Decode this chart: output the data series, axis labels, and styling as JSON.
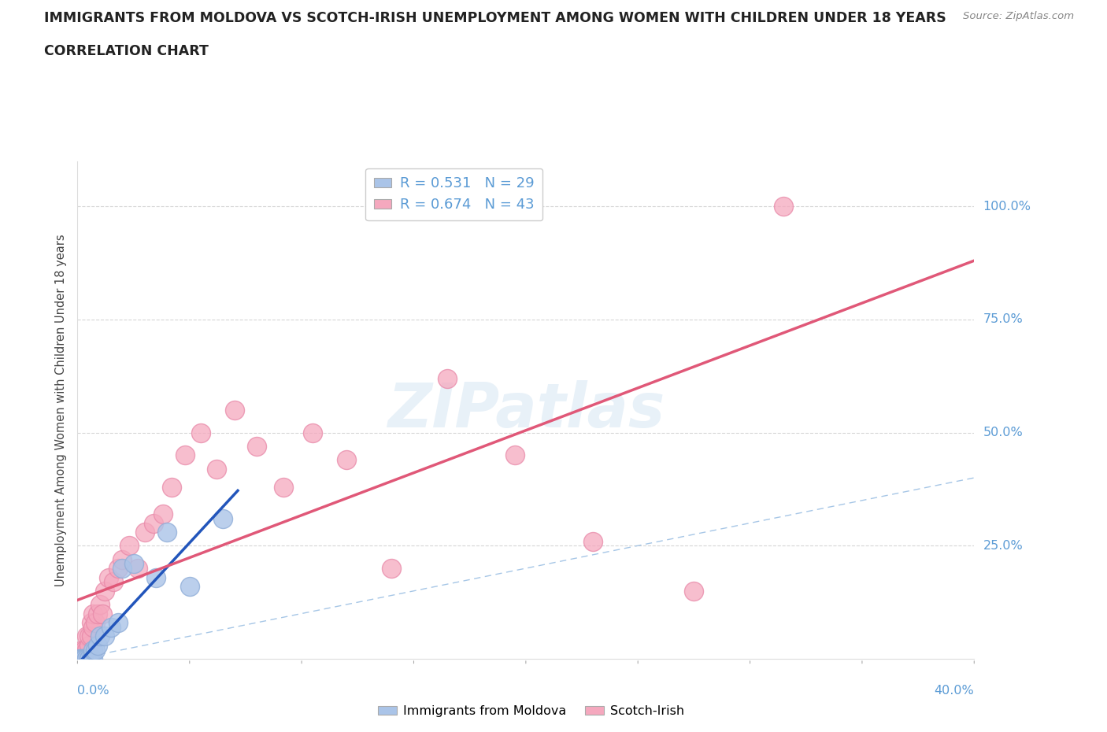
{
  "title": "IMMIGRANTS FROM MOLDOVA VS SCOTCH-IRISH UNEMPLOYMENT AMONG WOMEN WITH CHILDREN UNDER 18 YEARS",
  "subtitle": "CORRELATION CHART",
  "source": "Source: ZipAtlas.com",
  "ylabel": "Unemployment Among Women with Children Under 18 years",
  "xlim": [
    0,
    0.4
  ],
  "ylim": [
    0,
    1.1
  ],
  "yticks": [
    0.0,
    0.25,
    0.5,
    0.75,
    1.0
  ],
  "ytick_labels": [
    "0.0%",
    "25.0%",
    "50.0%",
    "75.0%",
    "100.0%"
  ],
  "moldova_R": 0.531,
  "moldova_N": 29,
  "scotch_R": 0.674,
  "scotch_N": 43,
  "moldova_color": "#aac4e8",
  "moldova_edge_color": "#90aed8",
  "moldova_line_color": "#2255bb",
  "scotch_color": "#f5a8be",
  "scotch_edge_color": "#e888a8",
  "scotch_line_color": "#e05878",
  "diag_color": "#90b8e0",
  "background_color": "#ffffff",
  "grid_color": "#cccccc",
  "moldova_x": [
    0.001,
    0.001,
    0.002,
    0.002,
    0.002,
    0.003,
    0.003,
    0.003,
    0.004,
    0.004,
    0.005,
    0.005,
    0.005,
    0.006,
    0.006,
    0.007,
    0.007,
    0.008,
    0.009,
    0.01,
    0.012,
    0.015,
    0.018,
    0.02,
    0.025,
    0.035,
    0.04,
    0.05,
    0.065
  ],
  "moldova_y": [
    0.0,
    0.0,
    0.0,
    0.0,
    0.0,
    0.0,
    0.0,
    0.0,
    0.0,
    0.0,
    0.0,
    0.0,
    0.0,
    0.0,
    0.0,
    0.0,
    0.02,
    0.02,
    0.03,
    0.05,
    0.05,
    0.07,
    0.08,
    0.2,
    0.21,
    0.18,
    0.28,
    0.16,
    0.31
  ],
  "scotch_x": [
    0.001,
    0.001,
    0.002,
    0.002,
    0.003,
    0.003,
    0.004,
    0.004,
    0.005,
    0.005,
    0.006,
    0.006,
    0.007,
    0.007,
    0.008,
    0.009,
    0.01,
    0.011,
    0.012,
    0.014,
    0.016,
    0.018,
    0.02,
    0.023,
    0.027,
    0.03,
    0.034,
    0.038,
    0.042,
    0.048,
    0.055,
    0.062,
    0.07,
    0.08,
    0.092,
    0.105,
    0.12,
    0.14,
    0.165,
    0.195,
    0.23,
    0.275,
    0.315
  ],
  "scotch_y": [
    0.0,
    0.0,
    0.0,
    0.02,
    0.0,
    0.02,
    0.02,
    0.05,
    0.03,
    0.05,
    0.05,
    0.08,
    0.07,
    0.1,
    0.08,
    0.1,
    0.12,
    0.1,
    0.15,
    0.18,
    0.17,
    0.2,
    0.22,
    0.25,
    0.2,
    0.28,
    0.3,
    0.32,
    0.38,
    0.45,
    0.5,
    0.42,
    0.55,
    0.47,
    0.38,
    0.5,
    0.44,
    0.2,
    0.62,
    0.45,
    0.26,
    0.15,
    1.0
  ]
}
